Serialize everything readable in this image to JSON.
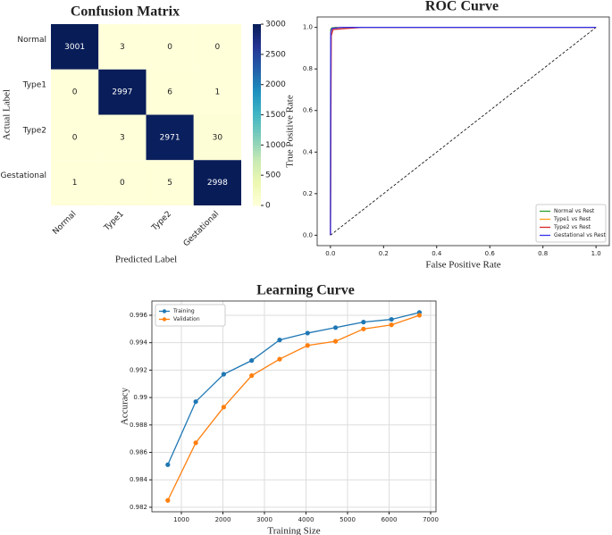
{
  "chart_data": [
    {
      "type": "heatmap",
      "title": "Confusion Matrix",
      "x_label": "Predicted Label",
      "y_label": "Actual Label",
      "x_categories": [
        "Normal",
        "Type1",
        "Type2",
        "Gestational"
      ],
      "y_categories": [
        "Normal",
        "Type1",
        "Type2",
        "Gestational"
      ],
      "values": [
        [
          3001,
          3,
          0,
          0
        ],
        [
          0,
          2997,
          6,
          1
        ],
        [
          0,
          3,
          2971,
          30
        ],
        [
          1,
          0,
          5,
          2998
        ]
      ],
      "cmap": "YlGnBu",
      "clim": [
        0,
        3001
      ],
      "cticks": [
        0,
        500,
        1000,
        1500,
        2000,
        2500,
        3000
      ]
    },
    {
      "type": "line",
      "title": "ROC Curve",
      "x_label": "False Positive Rate",
      "y_label": "True Positive Rate",
      "xlim": [
        -0.05,
        1.05
      ],
      "ylim": [
        -0.05,
        1.05
      ],
      "xticks": [
        {
          "value": 0,
          "label": "0.0"
        },
        0.2,
        0.4,
        0.6,
        0.8,
        {
          "value": 1,
          "label": "1.0"
        }
      ],
      "yticks": [
        {
          "value": 0,
          "label": "0.0"
        },
        0.2,
        0.4,
        0.6,
        0.8,
        {
          "value": 1,
          "label": "1.0"
        }
      ],
      "grid": false,
      "legend": "lower right",
      "marker": false,
      "series": [
        {
          "name": "Normal vs Rest",
          "color": "#2ca02c",
          "x": [
            0,
            0.001,
            0.005,
            0.02,
            1
          ],
          "values": [
            0,
            0.99,
            0.997,
            1,
            1
          ]
        },
        {
          "name": "Type1 vs Rest",
          "color": "#ff9f1c",
          "x": [
            0,
            0.002,
            0.008,
            0.03,
            1
          ],
          "values": [
            0,
            0.985,
            0.995,
            1,
            1
          ]
        },
        {
          "name": "Type2 vs Rest",
          "color": "#d62728",
          "x": [
            0,
            0.003,
            0.01,
            0.12,
            1
          ],
          "values": [
            0,
            0.96,
            0.99,
            1,
            1
          ]
        },
        {
          "name": "Gestational vs Rest",
          "color": "#3333ee",
          "x": [
            0,
            0.001,
            0.006,
            0.04,
            1
          ],
          "values": [
            0,
            0.975,
            0.995,
            1,
            1
          ]
        }
      ],
      "reference_line": {
        "x": [
          0,
          1
        ],
        "values": [
          0,
          1
        ],
        "color": "#000000",
        "dashed": true
      }
    },
    {
      "type": "line",
      "title": "Learning Curve",
      "x_label": "Training Size",
      "y_label": "Accuracy",
      "xlim": [
        290,
        7129
      ],
      "ylim": [
        0.98167,
        0.99704
      ],
      "xticks": [
        1000,
        2000,
        3000,
        4000,
        5000,
        6000,
        7000
      ],
      "yticks": [
        0.982,
        0.984,
        0.986,
        0.988,
        0.99,
        0.992,
        0.994,
        0.996
      ],
      "grid": true,
      "legend": "upper left",
      "marker": true,
      "series": [
        {
          "name": "Training",
          "color": "#1f77b4",
          "x": [
            673,
            1346,
            2019,
            2692,
            3365,
            4038,
            4711,
            5384,
            6057,
            6730
          ],
          "values": [
            0.9851,
            0.9897,
            0.9917,
            0.9927,
            0.9942,
            0.9947,
            0.9951,
            0.9955,
            0.9957,
            0.9962
          ]
        },
        {
          "name": "Validation",
          "color": "#ff7f0e",
          "x": [
            673,
            1346,
            2019,
            2692,
            3365,
            4038,
            4711,
            5384,
            6057,
            6730
          ],
          "values": [
            0.9825,
            0.9867,
            0.9893,
            0.9916,
            0.9928,
            0.9938,
            0.9941,
            0.995,
            0.9953,
            0.996
          ]
        }
      ]
    }
  ]
}
